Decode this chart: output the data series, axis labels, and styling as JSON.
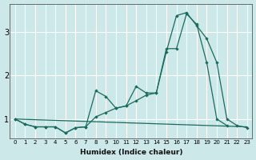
{
  "xlabel": "Humidex (Indice chaleur)",
  "ylabel": "",
  "bg_color": "#cce8e8",
  "grid_color": "#ffffff",
  "line_color": "#1a6b5e",
  "xlim": [
    -0.5,
    23.5
  ],
  "ylim": [
    0.55,
    3.65
  ],
  "yticks": [
    1,
    2,
    3
  ],
  "xticks": [
    0,
    1,
    2,
    3,
    4,
    5,
    6,
    7,
    8,
    9,
    10,
    11,
    12,
    13,
    14,
    15,
    16,
    17,
    18,
    19,
    20,
    21,
    22,
    23
  ],
  "series": [
    {
      "x": [
        0,
        1,
        2,
        3,
        4,
        5,
        6,
        7,
        8,
        9,
        10,
        11,
        12,
        13,
        14,
        15,
        16,
        17,
        18,
        19,
        20,
        21
      ],
      "y": [
        1.0,
        0.88,
        0.82,
        0.82,
        0.82,
        0.68,
        0.8,
        0.82,
        1.65,
        1.52,
        1.25,
        1.3,
        1.75,
        1.6,
        1.6,
        2.62,
        2.62,
        3.42,
        3.18,
        2.3,
        1.0,
        0.85
      ]
    },
    {
      "x": [
        0,
        1,
        2,
        3,
        4,
        5,
        6,
        7,
        8,
        9,
        10,
        11,
        12,
        13,
        14,
        15,
        16,
        17,
        18,
        19,
        20,
        21,
        22,
        23
      ],
      "y": [
        1.0,
        0.88,
        0.82,
        0.82,
        0.82,
        0.68,
        0.8,
        0.82,
        1.05,
        1.15,
        1.25,
        1.3,
        1.42,
        1.55,
        1.6,
        2.55,
        3.38,
        3.45,
        3.15,
        2.85,
        2.3,
        1.0,
        0.85,
        0.8
      ]
    },
    {
      "x": [
        0,
        23
      ],
      "y": [
        1.0,
        0.82
      ]
    }
  ]
}
